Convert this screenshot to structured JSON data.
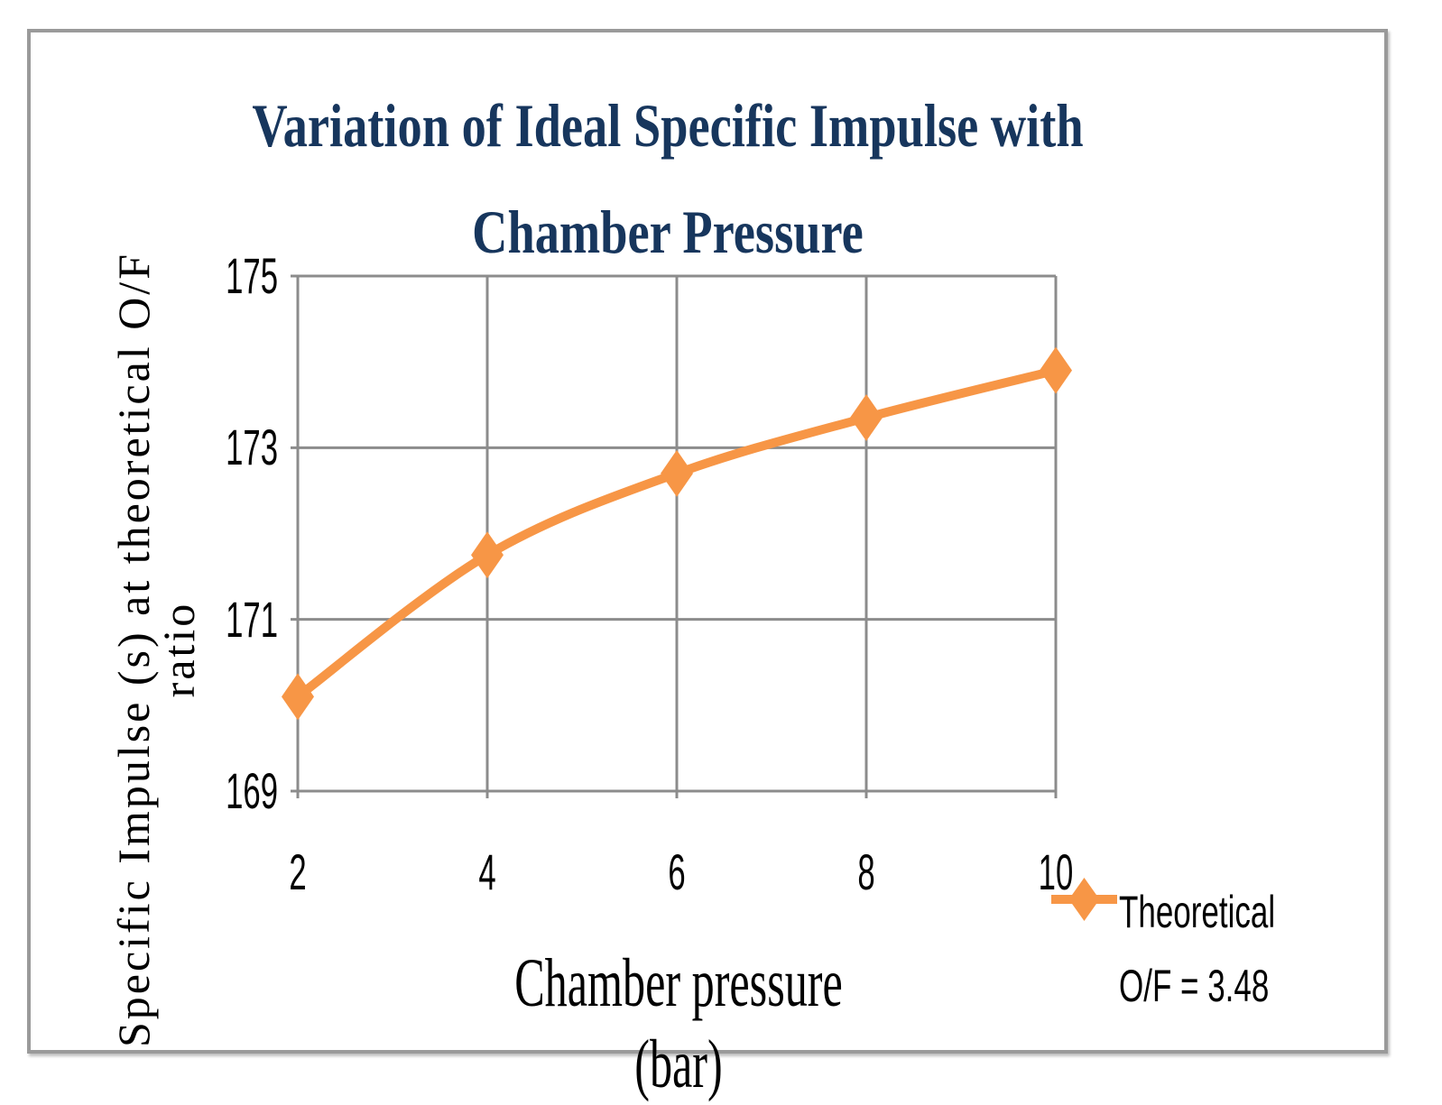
{
  "chart_data": {
    "type": "line",
    "title": "Variation  of Ideal Specific Impulse with Chamber Pressure",
    "xlabel": "Chamber pressure (bar)",
    "ylabel": "Specific Impulse (s) at theoretical O/F ratio",
    "categories": [
      "2",
      "4",
      "6",
      "8",
      "10"
    ],
    "x": [
      2,
      4,
      6,
      8,
      10
    ],
    "ylim": [
      169,
      175
    ],
    "yticks": [
      "169",
      "171",
      "173",
      "175"
    ],
    "grid": true,
    "legend_position": "bottom-right",
    "series": [
      {
        "name": "Theoretical O/F = 3.48",
        "color": "#f79646",
        "marker": "diamond",
        "values": [
          170.1,
          171.75,
          172.7,
          173.35,
          173.9
        ]
      }
    ]
  }
}
